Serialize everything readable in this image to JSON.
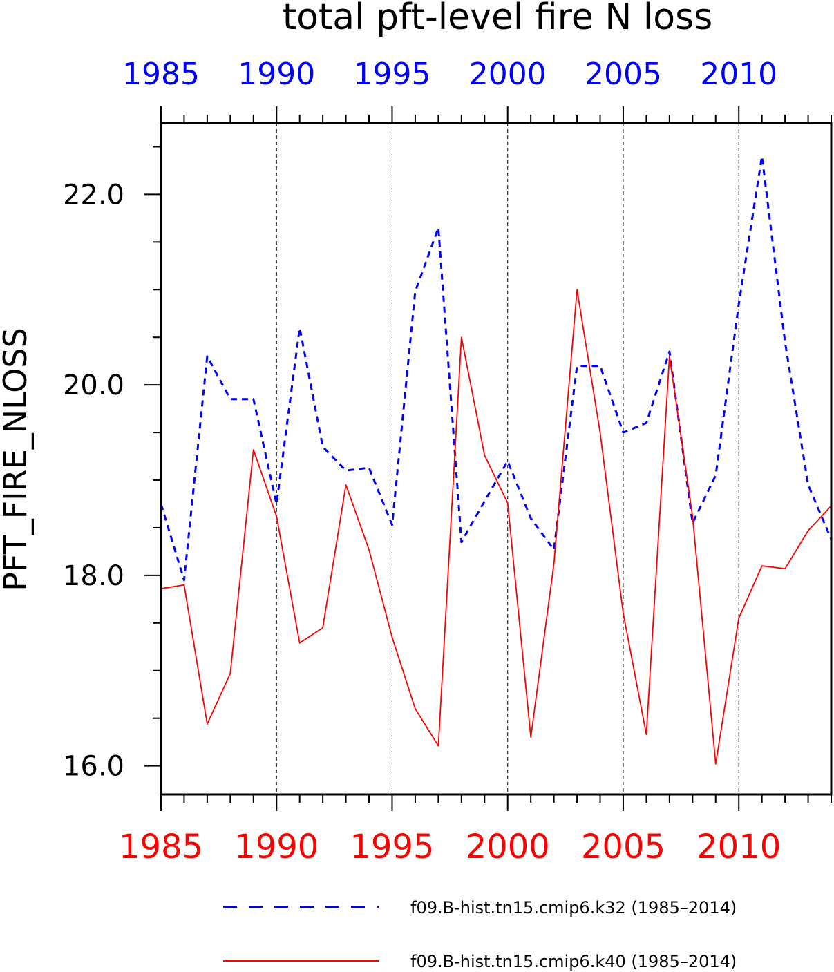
{
  "chart_data": {
    "type": "line",
    "title": "total pft-level fire N loss",
    "ylabel": "PFT_FIRE_NLOSS",
    "xlim": [
      1985,
      2014
    ],
    "ylim": [
      15.7,
      22.75
    ],
    "x_ticks": [
      "1985",
      "1990",
      "1995",
      "2000",
      "2005",
      "2010"
    ],
    "y_ticks": [
      "16.0",
      "18.0",
      "20.0",
      "22.0"
    ],
    "vertical_grid": true,
    "x": [
      1985,
      1986,
      1987,
      1988,
      1989,
      1990,
      1991,
      1992,
      1993,
      1994,
      1995,
      1996,
      1997,
      1998,
      1999,
      2000,
      2001,
      2002,
      2003,
      2004,
      2005,
      2006,
      2007,
      2008,
      2009,
      2010,
      2011,
      2012,
      2013,
      2014
    ],
    "series": [
      {
        "name": "f09.B-hist.tn15.cmip6.k32 (1985–2014)",
        "color": "#0000ff",
        "dash": "dashed",
        "values": [
          18.75,
          17.95,
          20.3,
          19.85,
          19.85,
          18.75,
          20.6,
          19.35,
          19.1,
          19.13,
          18.53,
          20.98,
          21.65,
          18.35,
          18.78,
          19.2,
          18.6,
          18.27,
          20.2,
          20.2,
          19.5,
          19.6,
          20.35,
          18.55,
          19.05,
          20.85,
          22.4,
          20.45,
          18.95,
          18.38
        ]
      },
      {
        "name": "f09.B-hist.tn15.cmip6.k40 (1985–2014)",
        "color": "#ff0000",
        "dash": "solid",
        "values": [
          17.86,
          17.9,
          16.44,
          16.97,
          19.32,
          18.62,
          17.29,
          17.45,
          18.95,
          18.27,
          17.35,
          16.6,
          16.21,
          20.5,
          19.26,
          18.76,
          16.3,
          18.12,
          21.0,
          19.5,
          17.6,
          16.33,
          20.3,
          18.62,
          16.02,
          17.55,
          18.1,
          18.07,
          18.47,
          18.73
        ]
      }
    ],
    "legend_position": "bottom"
  }
}
